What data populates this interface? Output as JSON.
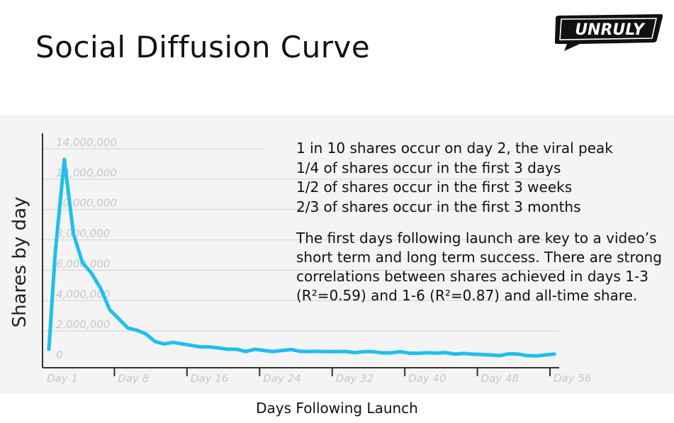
{
  "slide": {
    "title": "Social Diffusion Curve",
    "logo_text": "UNRULY"
  },
  "callout": {
    "stats": [
      "1 in 10 shares occur on day 2, the viral peak",
      "1/4 of shares occur in the first 3 days",
      "1/2 of shares occur in the first 3 weeks",
      "2/3 of shares occur in the first 3 months"
    ],
    "paragraph": "The first days following launch are key to a video’s short term and long term success. There are strong correlations between shares achieved in days 1-3 (R²=0.59) and 1-6 (R²=0.87) and all-time share."
  },
  "chart_data": {
    "type": "line",
    "xlabel": "Days Following Launch",
    "ylabel": "Shares by day",
    "ylim": [
      0,
      14000000
    ],
    "xlim": [
      0,
      56
    ],
    "y_ticks": [
      "0",
      "2,000,000",
      "4,000,000",
      "6,000,000",
      "8,000,000",
      "10,000,000",
      "12,000,000",
      "14,000,000"
    ],
    "y_tick_values": [
      0,
      2000000,
      4000000,
      6000000,
      8000000,
      10000000,
      12000000,
      14000000
    ],
    "x_ticks": [
      "Day 1",
      "Day 8",
      "Day 16",
      "Day 24",
      "Day 32",
      "Day 40",
      "Day 48",
      "Day 56"
    ],
    "x_tick_values": [
      0,
      8,
      16,
      24,
      32,
      40,
      48,
      56
    ],
    "grid": "horizontal",
    "line_color": "#1fbfee",
    "series": [
      {
        "x": [
          0,
          0.7,
          1.7,
          2.7,
          3.7,
          4.7,
          5.7,
          6.7,
          7.7,
          8.7,
          9.7,
          10.7,
          11.7,
          12.7,
          13.7,
          14.7,
          15.7,
          16.7,
          17.7,
          18.7,
          19.7,
          20.7,
          21.7,
          22.7,
          23.7,
          24.7,
          25.7,
          26.7,
          27.7,
          28.7,
          29.7,
          30.7,
          31.7,
          32.7,
          33.7,
          34.7,
          35.7,
          36.7,
          37.7,
          38.7,
          39.7,
          40.7,
          41.7,
          42.7,
          43.7,
          44.7,
          45.7,
          46.7,
          47.7,
          48.7,
          49.7,
          50.7,
          51.7,
          52.7,
          53.7,
          54.7,
          55.7
        ],
        "values": [
          800000,
          7200000,
          13300000,
          8400000,
          6500000,
          5800000,
          4800000,
          3400000,
          2800000,
          2200000,
          2050000,
          1800000,
          1300000,
          1150000,
          1250000,
          1150000,
          1050000,
          950000,
          950000,
          880000,
          800000,
          800000,
          650000,
          800000,
          720000,
          650000,
          720000,
          780000,
          660000,
          650000,
          660000,
          640000,
          650000,
          650000,
          580000,
          640000,
          640000,
          560000,
          560000,
          640000,
          540000,
          530000,
          570000,
          540000,
          580000,
          480000,
          520000,
          470000,
          450000,
          420000,
          380000,
          500000,
          480000,
          380000,
          360000,
          420000,
          480000
        ]
      }
    ]
  }
}
